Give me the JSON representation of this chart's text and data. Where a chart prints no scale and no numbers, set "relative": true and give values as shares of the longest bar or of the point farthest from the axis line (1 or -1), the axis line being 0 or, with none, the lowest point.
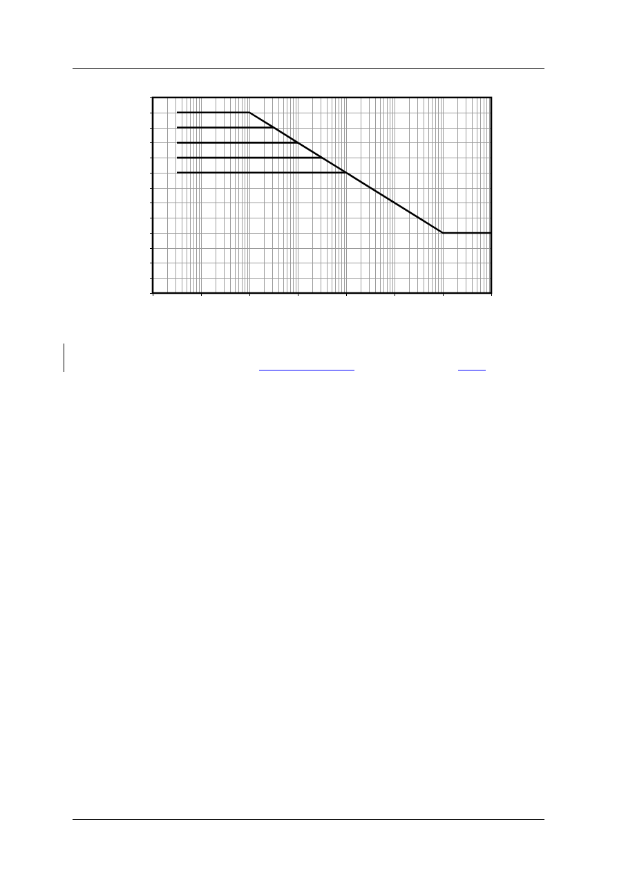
{
  "chart_data": {
    "type": "line",
    "relative": true,
    "grid": true,
    "tick_labels": false,
    "categories": [
      null,
      null,
      null,
      null,
      null,
      null,
      null,
      null,
      null,
      null,
      null,
      null,
      null,
      null,
      null
    ],
    "series": [
      {
        "color": "#000000",
        "values": [
          null,
          1,
          1,
          1,
          1,
          0.917,
          0.833,
          0.75,
          0.667,
          0.583,
          0.5,
          0.417,
          0.333,
          0.333,
          0.333
        ]
      },
      {
        "color": "#000000",
        "values": [
          null,
          0.917,
          0.917,
          0.917,
          0.917,
          0.917,
          null,
          null,
          null,
          null,
          null,
          null,
          null,
          null,
          null
        ]
      },
      {
        "color": "#000000",
        "values": [
          null,
          0.833,
          0.833,
          0.833,
          0.833,
          0.833,
          0.833,
          null,
          null,
          null,
          null,
          null,
          null,
          null,
          null
        ]
      },
      {
        "color": "#000000",
        "values": [
          null,
          0.75,
          0.75,
          0.75,
          0.75,
          0.75,
          0.75,
          0.75,
          null,
          null,
          null,
          null,
          null,
          null,
          null
        ]
      },
      {
        "color": "#000000",
        "values": [
          null,
          0.667,
          0.667,
          0.667,
          0.667,
          0.667,
          0.667,
          0.667,
          0.667,
          null,
          null,
          null,
          null,
          null,
          null
        ]
      }
    ]
  }
}
